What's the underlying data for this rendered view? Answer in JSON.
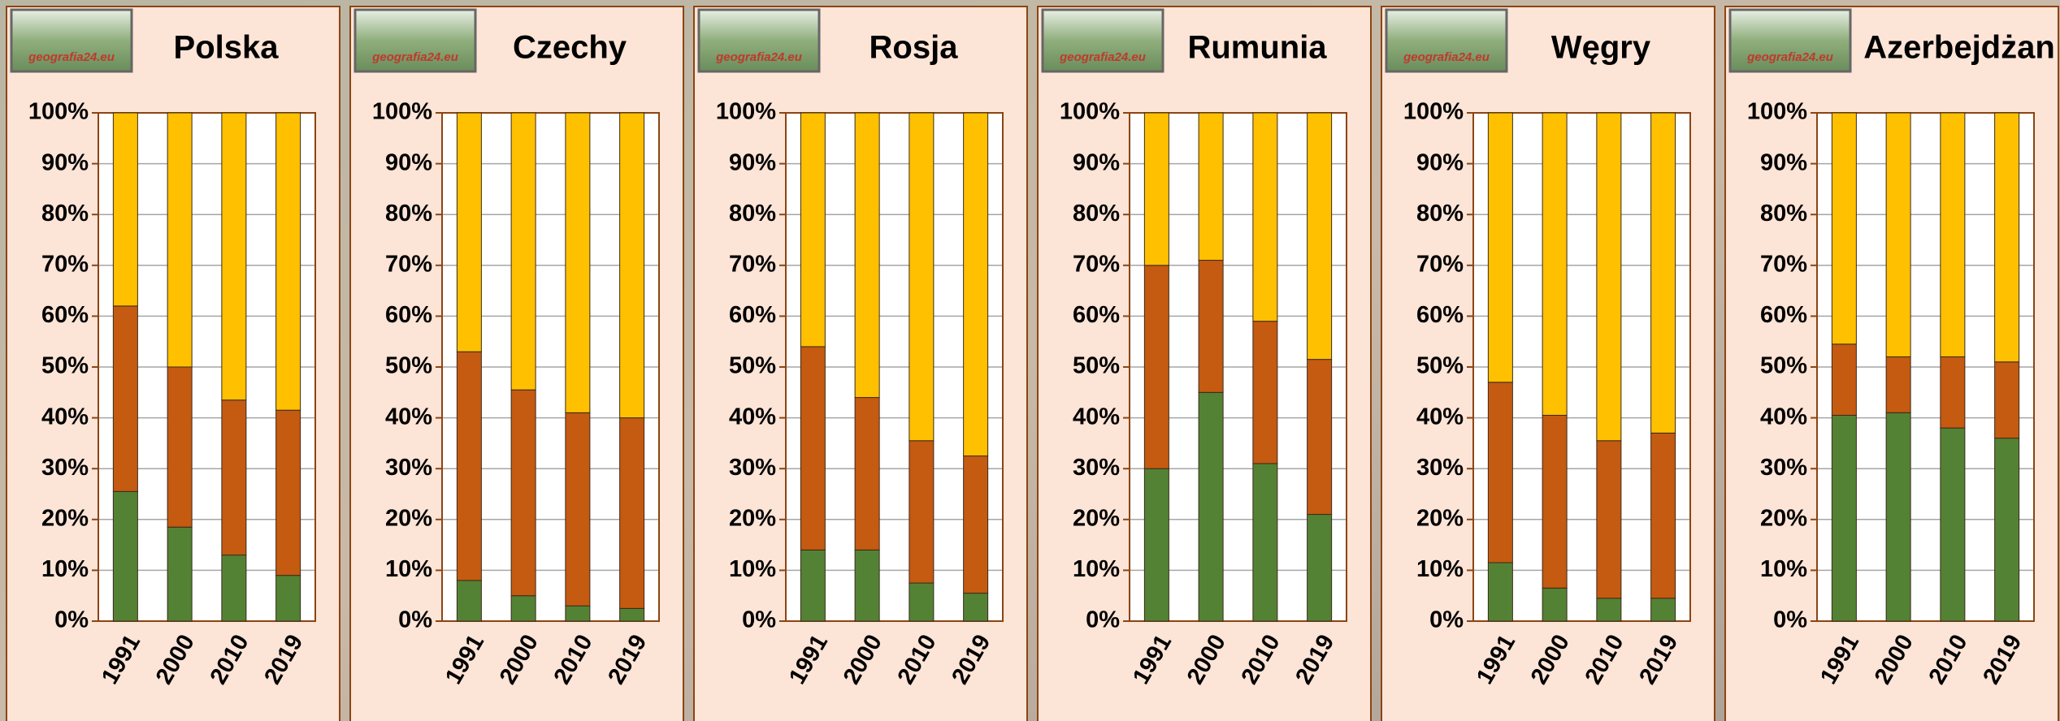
{
  "logo_text": "geografia24.eu",
  "chart_data": [
    {
      "type": "bar",
      "stacked": true,
      "title": "Polska",
      "categories": [
        "1991",
        "2000",
        "2010",
        "2019"
      ],
      "series": [
        {
          "color": "#548235",
          "values": [
            25.5,
            18.5,
            13,
            9
          ]
        },
        {
          "color": "#c55a11",
          "values": [
            36.5,
            31.5,
            30.5,
            32.5
          ]
        },
        {
          "color": "#ffc000",
          "values": [
            38,
            50,
            56.5,
            58.5
          ]
        }
      ],
      "ylim": [
        0,
        100
      ],
      "yticks": [
        {
          "value": 0,
          "label": "0%"
        },
        {
          "value": 10,
          "label": "10%"
        },
        {
          "value": 20,
          "label": "20%"
        },
        {
          "value": 30,
          "label": "30%"
        },
        {
          "value": 40,
          "label": "40%"
        },
        {
          "value": 50,
          "label": "50%"
        },
        {
          "value": 60,
          "label": "60%"
        },
        {
          "value": 70,
          "label": "70%"
        },
        {
          "value": 80,
          "label": "80%"
        },
        {
          "value": 90,
          "label": "90%"
        },
        {
          "value": 100,
          "label": "100%"
        }
      ],
      "grid": true
    },
    {
      "type": "bar",
      "stacked": true,
      "title": "Czechy",
      "categories": [
        "1991",
        "2000",
        "2010",
        "2019"
      ],
      "series": [
        {
          "color": "#548235",
          "values": [
            8,
            5,
            3,
            2.5
          ]
        },
        {
          "color": "#c55a11",
          "values": [
            45,
            40.5,
            38,
            37.5
          ]
        },
        {
          "color": "#ffc000",
          "values": [
            47,
            54.5,
            59,
            60
          ]
        }
      ],
      "ylim": [
        0,
        100
      ],
      "yticks": [
        {
          "value": 0,
          "label": "0%"
        },
        {
          "value": 10,
          "label": "10%"
        },
        {
          "value": 20,
          "label": "20%"
        },
        {
          "value": 30,
          "label": "30%"
        },
        {
          "value": 40,
          "label": "40%"
        },
        {
          "value": 50,
          "label": "50%"
        },
        {
          "value": 60,
          "label": "60%"
        },
        {
          "value": 70,
          "label": "70%"
        },
        {
          "value": 80,
          "label": "80%"
        },
        {
          "value": 90,
          "label": "90%"
        },
        {
          "value": 100,
          "label": "100%"
        }
      ],
      "grid": true
    },
    {
      "type": "bar",
      "stacked": true,
      "title": "Rosja",
      "categories": [
        "1991",
        "2000",
        "2010",
        "2019"
      ],
      "series": [
        {
          "color": "#548235",
          "values": [
            14,
            14,
            7.5,
            5.5
          ]
        },
        {
          "color": "#c55a11",
          "values": [
            40,
            30,
            28,
            27
          ]
        },
        {
          "color": "#ffc000",
          "values": [
            46,
            56,
            64.5,
            67.5
          ]
        }
      ],
      "ylim": [
        0,
        100
      ],
      "yticks": [
        {
          "value": 0,
          "label": "0%"
        },
        {
          "value": 10,
          "label": "10%"
        },
        {
          "value": 20,
          "label": "20%"
        },
        {
          "value": 30,
          "label": "30%"
        },
        {
          "value": 40,
          "label": "40%"
        },
        {
          "value": 50,
          "label": "50%"
        },
        {
          "value": 60,
          "label": "60%"
        },
        {
          "value": 70,
          "label": "70%"
        },
        {
          "value": 80,
          "label": "80%"
        },
        {
          "value": 90,
          "label": "90%"
        },
        {
          "value": 100,
          "label": "100%"
        }
      ],
      "grid": true
    },
    {
      "type": "bar",
      "stacked": true,
      "title": "Rumunia",
      "categories": [
        "1991",
        "2000",
        "2010",
        "2019"
      ],
      "series": [
        {
          "color": "#548235",
          "values": [
            30,
            45,
            31,
            21
          ]
        },
        {
          "color": "#c55a11",
          "values": [
            40,
            26,
            28,
            30.5
          ]
        },
        {
          "color": "#ffc000",
          "values": [
            30,
            29,
            41,
            48.5
          ]
        }
      ],
      "ylim": [
        0,
        100
      ],
      "yticks": [
        {
          "value": 0,
          "label": "0%"
        },
        {
          "value": 10,
          "label": "10%"
        },
        {
          "value": 20,
          "label": "20%"
        },
        {
          "value": 30,
          "label": "30%"
        },
        {
          "value": 40,
          "label": "40%"
        },
        {
          "value": 50,
          "label": "50%"
        },
        {
          "value": 60,
          "label": "60%"
        },
        {
          "value": 70,
          "label": "70%"
        },
        {
          "value": 80,
          "label": "80%"
        },
        {
          "value": 90,
          "label": "90%"
        },
        {
          "value": 100,
          "label": "100%"
        }
      ],
      "grid": true
    },
    {
      "type": "bar",
      "stacked": true,
      "title": "Węgry",
      "categories": [
        "1991",
        "2000",
        "2010",
        "2019"
      ],
      "series": [
        {
          "color": "#548235",
          "values": [
            11.5,
            6.5,
            4.5,
            4.5
          ]
        },
        {
          "color": "#c55a11",
          "values": [
            35.5,
            34,
            31,
            32.5
          ]
        },
        {
          "color": "#ffc000",
          "values": [
            53,
            59.5,
            64.5,
            63
          ]
        }
      ],
      "ylim": [
        0,
        100
      ],
      "yticks": [
        {
          "value": 0,
          "label": "0%"
        },
        {
          "value": 10,
          "label": "10%"
        },
        {
          "value": 20,
          "label": "20%"
        },
        {
          "value": 30,
          "label": "30%"
        },
        {
          "value": 40,
          "label": "40%"
        },
        {
          "value": 50,
          "label": "50%"
        },
        {
          "value": 60,
          "label": "60%"
        },
        {
          "value": 70,
          "label": "70%"
        },
        {
          "value": 80,
          "label": "80%"
        },
        {
          "value": 90,
          "label": "90%"
        },
        {
          "value": 100,
          "label": "100%"
        }
      ],
      "grid": true
    },
    {
      "type": "bar",
      "stacked": true,
      "title": "Azerbejdżan",
      "categories": [
        "1991",
        "2000",
        "2010",
        "2019"
      ],
      "series": [
        {
          "color": "#548235",
          "values": [
            40.5,
            41,
            38,
            36
          ]
        },
        {
          "color": "#c55a11",
          "values": [
            14,
            11,
            14,
            15
          ]
        },
        {
          "color": "#ffc000",
          "values": [
            45.5,
            48,
            48,
            49
          ]
        }
      ],
      "ylim": [
        0,
        100
      ],
      "yticks": [
        {
          "value": 0,
          "label": "0%"
        },
        {
          "value": 10,
          "label": "10%"
        },
        {
          "value": 20,
          "label": "20%"
        },
        {
          "value": 30,
          "label": "30%"
        },
        {
          "value": 40,
          "label": "40%"
        },
        {
          "value": 50,
          "label": "50%"
        },
        {
          "value": 60,
          "label": "60%"
        },
        {
          "value": 70,
          "label": "70%"
        },
        {
          "value": 80,
          "label": "80%"
        },
        {
          "value": 90,
          "label": "90%"
        },
        {
          "value": 100,
          "label": "100%"
        }
      ],
      "grid": true
    }
  ]
}
